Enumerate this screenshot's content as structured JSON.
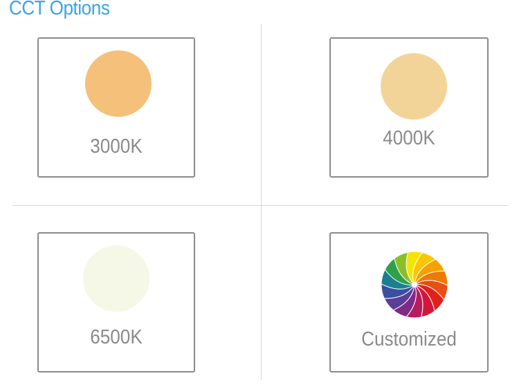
{
  "title": "CCT Options",
  "options": [
    {
      "label": "3000K",
      "color": "#f5c07a"
    },
    {
      "label": "4000K",
      "color": "#f3d498"
    },
    {
      "label": "6500K",
      "color": "#f5f8e6"
    },
    {
      "label": "Customized",
      "icon": "color-wheel-icon"
    }
  ],
  "wheel_colors": [
    "#f6e400",
    "#f9c600",
    "#f7a100",
    "#ef7a00",
    "#e94e12",
    "#e41f1a",
    "#d4153a",
    "#b71c5c",
    "#7e2a87",
    "#5a3f98",
    "#3b4fa2",
    "#1b7f92",
    "#2ea04b",
    "#8bbf2a"
  ]
}
